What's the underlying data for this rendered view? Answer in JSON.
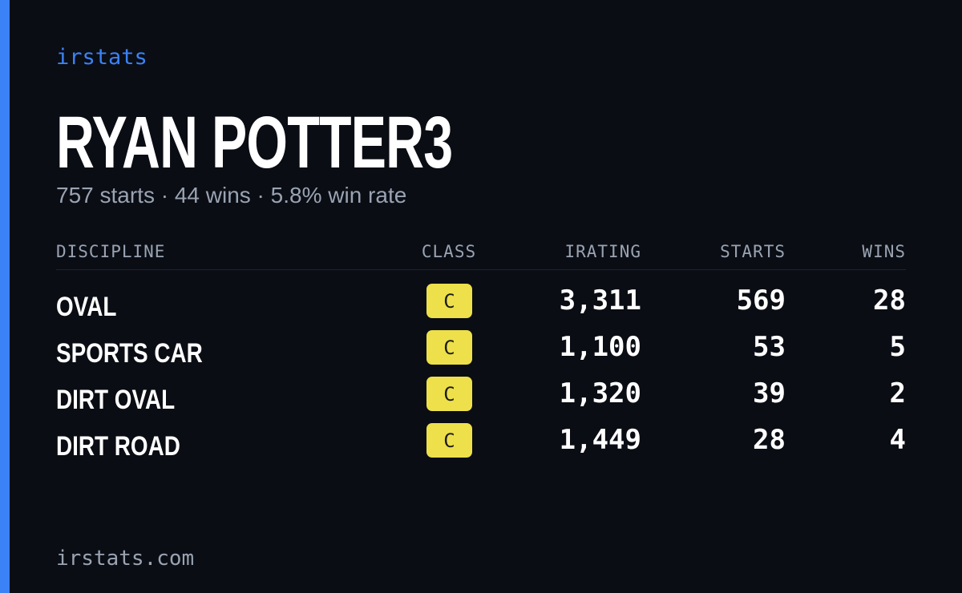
{
  "brand": "irstats",
  "title": "RYAN POTTER3",
  "subtitle": "757 starts · 44 wins · 5.8% win rate",
  "table": {
    "columns": [
      "DISCIPLINE",
      "CLASS",
      "IRATING",
      "STARTS",
      "WINS"
    ],
    "rows": [
      [
        "OVAL",
        "C",
        "3,311",
        "569",
        "28"
      ],
      [
        "SPORTS CAR",
        "C",
        "1,100",
        "53",
        "5"
      ],
      [
        "DIRT OVAL",
        "C",
        "1,320",
        "39",
        "2"
      ],
      [
        "DIRT ROAD",
        "C",
        "1,449",
        "28",
        "4"
      ]
    ]
  },
  "footer": "irstats.com"
}
